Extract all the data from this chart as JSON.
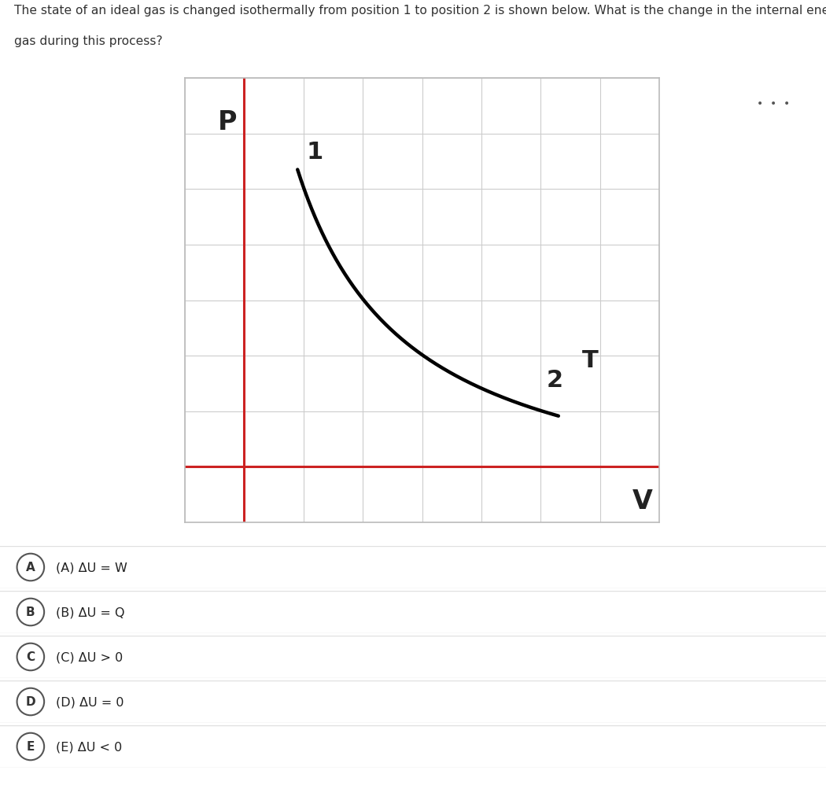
{
  "question_text_line1": "The state of an ideal gas is changed isothermally from position 1 to position 2 is shown below. What is the change in the internal energy of the",
  "question_text_line2": "gas during this process?",
  "graph_bg_color": "#ffffff",
  "grid_color": "#cccccc",
  "axis_color": "#cc2222",
  "curve_color": "#000000",
  "curve_linewidth": 3.2,
  "p_label": "P",
  "v_label": "V",
  "t_label": "T",
  "label1": "1",
  "label2": "2",
  "choices": [
    {
      "letter": "A",
      "text": "(A) ΔU = W"
    },
    {
      "letter": "B",
      "text": "(B) ΔU = Q"
    },
    {
      "letter": "C",
      "text": "(C) ΔU > 0"
    },
    {
      "letter": "D",
      "text": "(D) ΔU = 0"
    },
    {
      "letter": "E",
      "text": "(E) ΔU < 0"
    }
  ],
  "choice_bg_color": "#f7f7f7",
  "choice_border_color": "#e0e0e0",
  "choice_text_color": "#222222",
  "background_color": "#ffffff",
  "left_panel_color": "#e4e4e4",
  "right_panel_color": "#e4e4e4",
  "dots_color": "#555555",
  "graph_outer_bg": "#e4e4e4",
  "graph_border_color": "#bbbbbb"
}
